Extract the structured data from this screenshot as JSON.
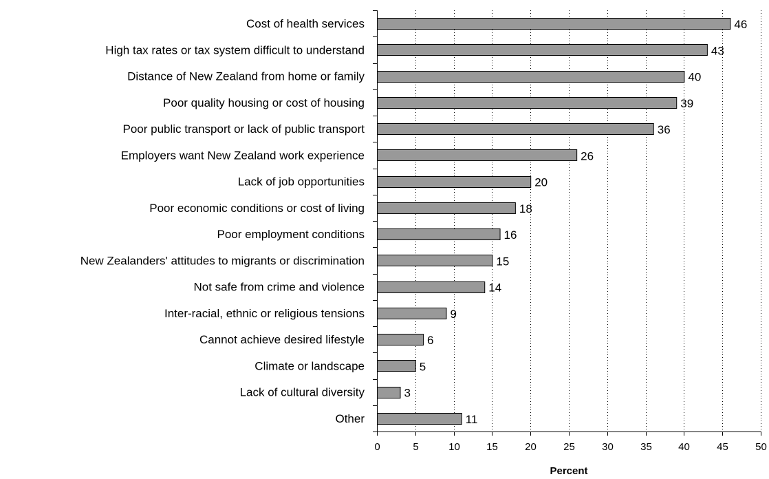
{
  "chart_data": {
    "type": "bar",
    "orientation": "horizontal",
    "categories": [
      "Cost of health services",
      "High tax rates or tax system difficult to understand",
      "Distance of New Zealand from home or family",
      "Poor quality housing or cost of housing",
      "Poor public transport or lack of public transport",
      "Employers want New Zealand work experience",
      "Lack of job opportunities",
      "Poor economic conditions or cost of living",
      "Poor employment conditions",
      "New Zealanders' attitudes to migrants or discrimination",
      "Not safe from crime and violence",
      "Inter-racial, ethnic or religious tensions",
      "Cannot achieve desired lifestyle",
      "Climate or landscape",
      "Lack of cultural diversity",
      "Other"
    ],
    "values": [
      46,
      43,
      40,
      39,
      36,
      26,
      20,
      18,
      16,
      15,
      14,
      9,
      6,
      5,
      3,
      11
    ],
    "title": "",
    "xlabel": "Percent",
    "ylabel": "",
    "xlim": [
      0,
      50
    ],
    "xticks": [
      0,
      5,
      10,
      15,
      20,
      25,
      30,
      35,
      40,
      45,
      50
    ],
    "grid": "vertical dotted",
    "legend": "none",
    "bar_color": "#999999",
    "bar_edge_color": "#000000"
  }
}
